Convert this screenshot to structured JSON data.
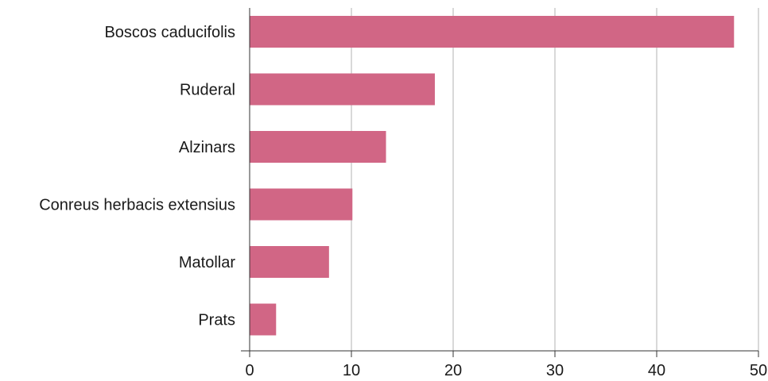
{
  "chart_data": {
    "type": "bar",
    "orientation": "horizontal",
    "categories": [
      "Boscos caducifolis",
      "Ruderal",
      "Alzinars",
      "Conreus herbacis extensius",
      "Matollar",
      "Prats"
    ],
    "values": [
      47.6,
      18.2,
      13.4,
      10.1,
      7.8,
      2.6
    ],
    "title": "",
    "xlabel": "",
    "ylabel": "",
    "xlim": [
      0,
      50
    ],
    "xticks": [
      "0",
      "10",
      "20",
      "30",
      "40",
      "50"
    ],
    "grid": "vertical",
    "legend": "none",
    "colors": {
      "bar": "#d16685",
      "grid": "#b3b3b3",
      "axis": "#333333",
      "text": "#1a1a1a"
    }
  }
}
